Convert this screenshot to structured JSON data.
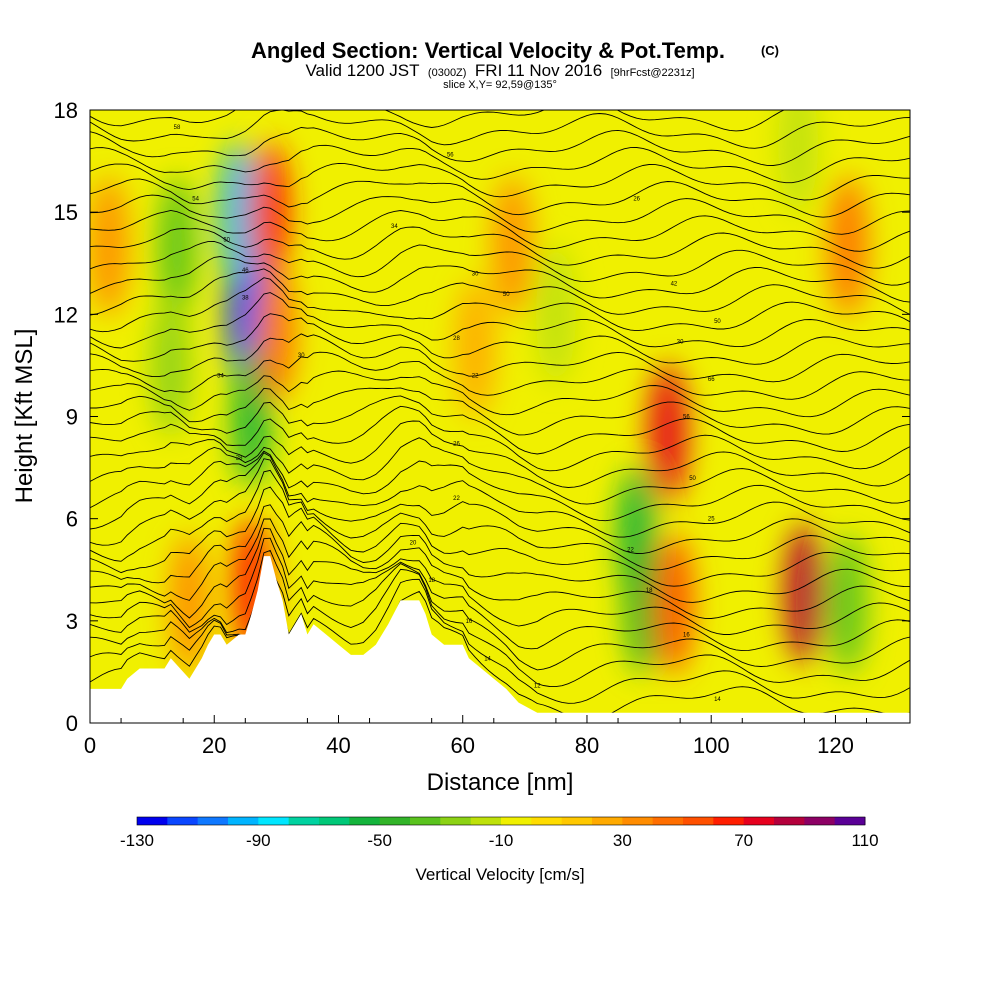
{
  "chart_data": {
    "type": "heatmap",
    "title": "Angled Section: Vertical Velocity & Pot.Temp.",
    "title_unit": "(C)",
    "subtitle_parts": [
      "Valid 1200 JST",
      "(0300Z)",
      "FRI 11 Nov 2016",
      "[9hrFcst@2231z]"
    ],
    "slice_label": "slice X,Y= 92,59@135°",
    "xlabel": "Distance [nm]",
    "ylabel": "Height [Kft MSL]",
    "xlim": [
      0,
      132
    ],
    "ylim": [
      0,
      18
    ],
    "x_ticks": [
      "0",
      "20",
      "40",
      "60",
      "80",
      "100",
      "120"
    ],
    "y_ticks": [
      "0",
      "3",
      "6",
      "9",
      "12",
      "15",
      "18"
    ],
    "colorbar": {
      "label": "Vertical Velocity [cm/s]",
      "min": -130,
      "max": 110,
      "step": 10,
      "tick_labels": [
        "-130",
        "-90",
        "-50",
        "-10",
        "30",
        "70",
        "110"
      ],
      "colors": [
        "#0000ee",
        "#0a46ff",
        "#0f78ff",
        "#00b4ff",
        "#00e6ff",
        "#00d2a0",
        "#00c878",
        "#14b43c",
        "#32b428",
        "#5ac31e",
        "#8cd214",
        "#bee10a",
        "#f0f000",
        "#ffdc00",
        "#ffc800",
        "#ffaa00",
        "#ff8c00",
        "#ff6e00",
        "#ff5000",
        "#ff1e00",
        "#e6001e",
        "#b4003c",
        "#8c0064",
        "#5a0096"
      ]
    },
    "w_features": [
      {
        "x": 25,
        "z": 12,
        "w": -120
      },
      {
        "x": 24,
        "z": 15,
        "w": -95
      },
      {
        "x": 26,
        "z": 9,
        "w": -60
      },
      {
        "x": 14,
        "z": 14,
        "w": -40
      },
      {
        "x": 13,
        "z": 10.5,
        "w": -30
      },
      {
        "x": 29,
        "z": 15,
        "w": 60
      },
      {
        "x": 30,
        "z": 11.5,
        "w": 40
      },
      {
        "x": 26,
        "z": 4,
        "w": 65
      },
      {
        "x": 88,
        "z": 5.5,
        "w": -60
      },
      {
        "x": 89,
        "z": 3.5,
        "w": -50
      },
      {
        "x": 93,
        "z": 8.5,
        "w": 70
      },
      {
        "x": 94,
        "z": 3.5,
        "w": 55
      },
      {
        "x": 115,
        "z": 3.8,
        "w": 85
      },
      {
        "x": 122,
        "z": 3.5,
        "w": -35
      },
      {
        "x": 122,
        "z": 14,
        "w": 40
      },
      {
        "x": 114,
        "z": 17,
        "w": -20
      },
      {
        "x": 68,
        "z": 14,
        "w": 35
      },
      {
        "x": 75,
        "z": 12,
        "w": -15
      },
      {
        "x": 3,
        "z": 14,
        "w": 35
      },
      {
        "x": 16,
        "z": 3.5,
        "w": 35
      },
      {
        "x": 62,
        "z": 11,
        "w": 25
      }
    ],
    "terrain": [
      {
        "x": 0,
        "z": 1.0
      },
      {
        "x": 5,
        "z": 1.0
      },
      {
        "x": 6,
        "z": 1.3
      },
      {
        "x": 8,
        "z": 1.6
      },
      {
        "x": 12,
        "z": 1.6
      },
      {
        "x": 13,
        "z": 1.9
      },
      {
        "x": 16,
        "z": 1.3
      },
      {
        "x": 18,
        "z": 1.9
      },
      {
        "x": 19,
        "z": 2.3
      },
      {
        "x": 20,
        "z": 2.6
      },
      {
        "x": 21,
        "z": 2.6
      },
      {
        "x": 22,
        "z": 2.3
      },
      {
        "x": 24,
        "z": 2.6
      },
      {
        "x": 25,
        "z": 2.6
      },
      {
        "x": 26,
        "z": 3.2
      },
      {
        "x": 27,
        "z": 3.9
      },
      {
        "x": 28,
        "z": 4.9
      },
      {
        "x": 29,
        "z": 4.9
      },
      {
        "x": 30,
        "z": 4.2
      },
      {
        "x": 31,
        "z": 3.6
      },
      {
        "x": 32,
        "z": 2.6
      },
      {
        "x": 33,
        "z": 2.9
      },
      {
        "x": 34,
        "z": 3.2
      },
      {
        "x": 35,
        "z": 2.6
      },
      {
        "x": 36,
        "z": 2.9
      },
      {
        "x": 38,
        "z": 2.6
      },
      {
        "x": 40,
        "z": 2.3
      },
      {
        "x": 42,
        "z": 2.0
      },
      {
        "x": 44,
        "z": 2.0
      },
      {
        "x": 46,
        "z": 2.3
      },
      {
        "x": 48,
        "z": 2.9
      },
      {
        "x": 50,
        "z": 3.6
      },
      {
        "x": 53,
        "z": 3.6
      },
      {
        "x": 54,
        "z": 3.2
      },
      {
        "x": 55,
        "z": 2.6
      },
      {
        "x": 57,
        "z": 2.3
      },
      {
        "x": 60,
        "z": 2.3
      },
      {
        "x": 61,
        "z": 1.9
      },
      {
        "x": 63,
        "z": 1.6
      },
      {
        "x": 65,
        "z": 1.3
      },
      {
        "x": 67,
        "z": 1.0
      },
      {
        "x": 69,
        "z": 0.6
      },
      {
        "x": 72,
        "z": 0.3
      },
      {
        "x": 100,
        "z": 0.3
      },
      {
        "x": 120,
        "z": 0.3
      },
      {
        "x": 132,
        "z": 0.3
      }
    ],
    "contour_labels": [
      {
        "text": "58",
        "x": 14,
        "z": 17.5
      },
      {
        "text": "54",
        "x": 17,
        "z": 15.4
      },
      {
        "text": "50",
        "x": 22,
        "z": 14.2
      },
      {
        "text": "46",
        "x": 25,
        "z": 13.3
      },
      {
        "text": "38",
        "x": 25,
        "z": 12.5
      },
      {
        "text": "30",
        "x": 34,
        "z": 10.8
      },
      {
        "text": "34",
        "x": 21,
        "z": 10.2
      },
      {
        "text": "28",
        "x": 24,
        "z": 7.8
      },
      {
        "text": "56",
        "x": 58,
        "z": 16.7
      },
      {
        "text": "34",
        "x": 49,
        "z": 14.6
      },
      {
        "text": "30",
        "x": 62,
        "z": 13.2
      },
      {
        "text": "50",
        "x": 67,
        "z": 12.6
      },
      {
        "text": "28",
        "x": 59,
        "z": 11.3
      },
      {
        "text": "22",
        "x": 62,
        "z": 10.2
      },
      {
        "text": "26",
        "x": 59,
        "z": 8.2
      },
      {
        "text": "22",
        "x": 59,
        "z": 6.6
      },
      {
        "text": "20",
        "x": 52,
        "z": 5.3
      },
      {
        "text": "18",
        "x": 55,
        "z": 4.2
      },
      {
        "text": "16",
        "x": 61,
        "z": 3.0
      },
      {
        "text": "14",
        "x": 64,
        "z": 1.9
      },
      {
        "text": "12",
        "x": 72,
        "z": 1.1
      },
      {
        "text": "26",
        "x": 88,
        "z": 15.4
      },
      {
        "text": "42",
        "x": 94,
        "z": 12.9
      },
      {
        "text": "50",
        "x": 101,
        "z": 11.8
      },
      {
        "text": "30",
        "x": 95,
        "z": 11.2
      },
      {
        "text": "66",
        "x": 100,
        "z": 10.1
      },
      {
        "text": "56",
        "x": 96,
        "z": 9.0
      },
      {
        "text": "50",
        "x": 97,
        "z": 7.2
      },
      {
        "text": "25",
        "x": 100,
        "z": 6.0
      },
      {
        "text": "22",
        "x": 87,
        "z": 5.1
      },
      {
        "text": "18",
        "x": 90,
        "z": 3.9
      },
      {
        "text": "16",
        "x": 96,
        "z": 2.6
      },
      {
        "text": "14",
        "x": 101,
        "z": 0.7
      }
    ]
  }
}
